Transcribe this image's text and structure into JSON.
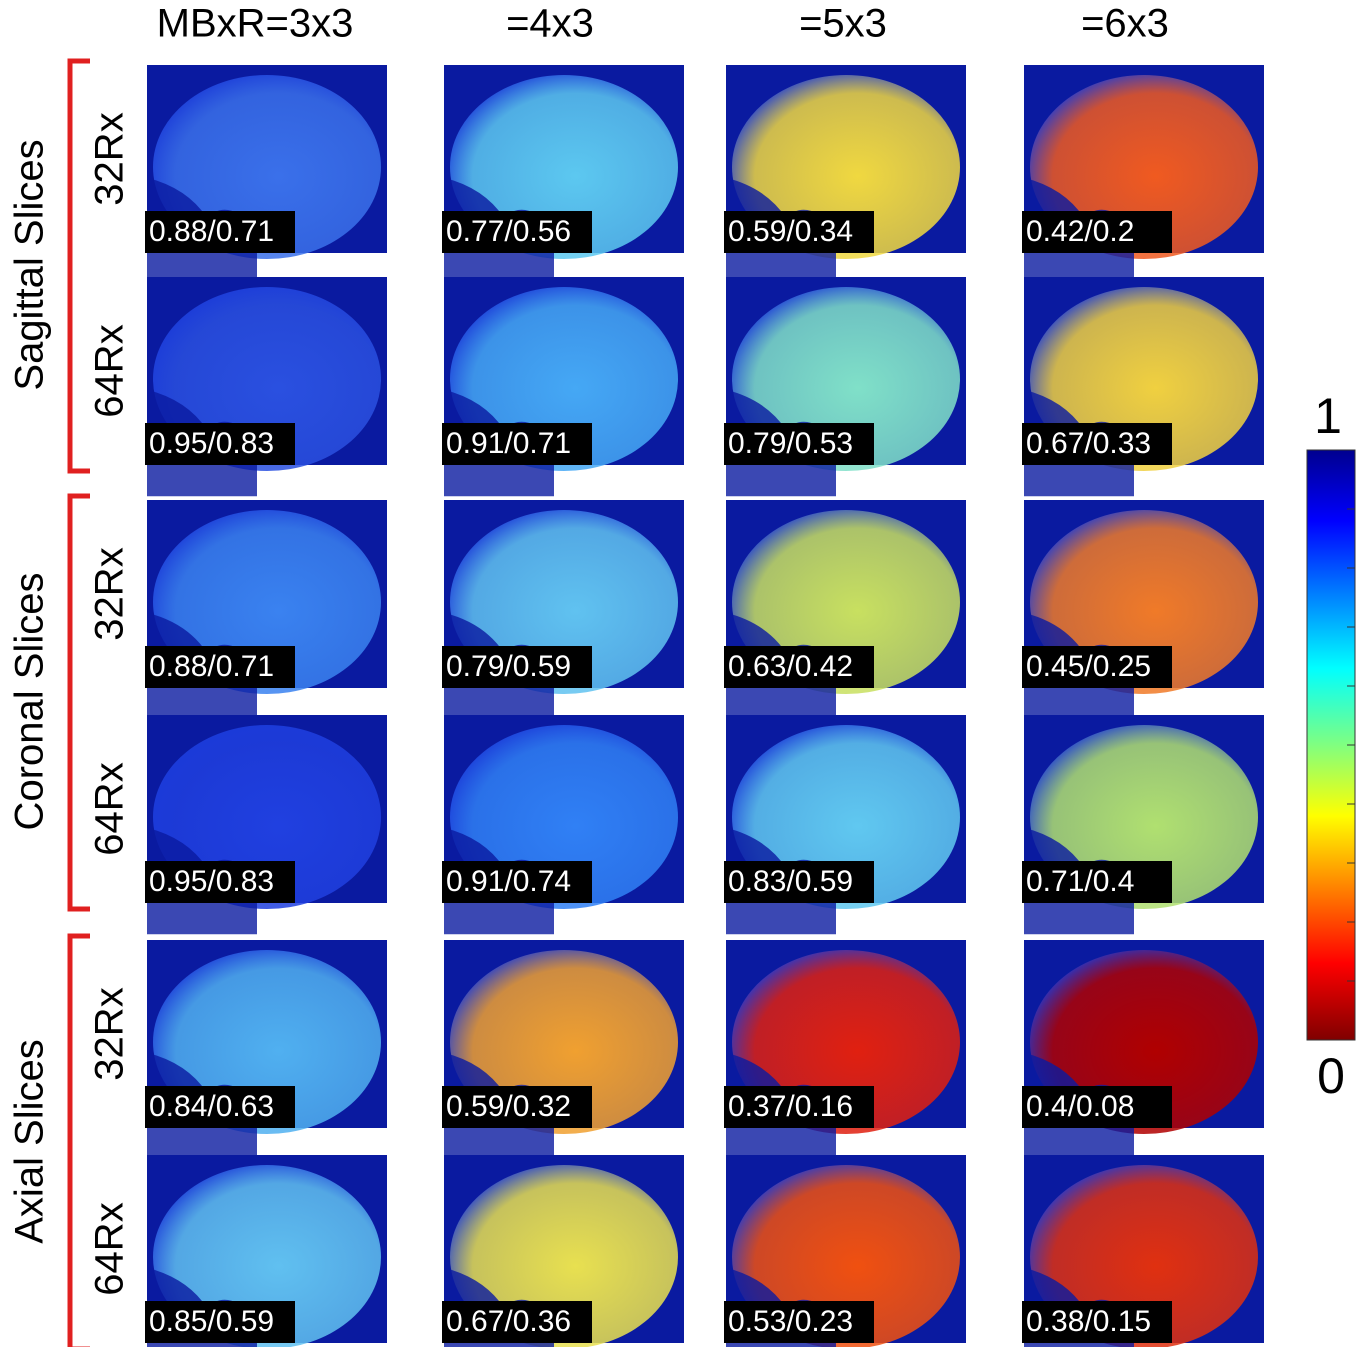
{
  "header": {
    "columns": [
      "MBxR=3x3",
      "=4x3",
      "=5x3",
      "=6x3"
    ]
  },
  "groups": [
    {
      "label": "Sagittal Slices",
      "rows": [
        {
          "label": "32Rx",
          "cells": [
            {
              "label": "0.88/0.71",
              "color": "#3a70ea"
            },
            {
              "label": "0.77/0.56",
              "color": "#5cc8f0"
            },
            {
              "label": "0.59/0.34",
              "color": "#f0d840"
            },
            {
              "label": "0.42/0.2",
              "color": "#f05a20"
            }
          ]
        },
        {
          "label": "64Rx",
          "cells": [
            {
              "label": "0.95/0.83",
              "color": "#2a50e0"
            },
            {
              "label": "0.91/0.71",
              "color": "#45a8f5"
            },
            {
              "label": "0.79/0.53",
              "color": "#80e0c8"
            },
            {
              "label": "0.67/0.33",
              "color": "#f0d040"
            }
          ]
        }
      ]
    },
    {
      "label": "Coronal Slices",
      "rows": [
        {
          "label": "32Rx",
          "cells": [
            {
              "label": "0.88/0.71",
              "color": "#3a82f0"
            },
            {
              "label": "0.79/0.59",
              "color": "#60c2f0"
            },
            {
              "label": "0.63/0.42",
              "color": "#c8e060"
            },
            {
              "label": "0.45/0.25",
              "color": "#f07a28"
            }
          ]
        },
        {
          "label": "64Rx",
          "cells": [
            {
              "label": "0.95/0.83",
              "color": "#2040e0"
            },
            {
              "label": "0.91/0.74",
              "color": "#3080f5"
            },
            {
              "label": "0.83/0.59",
              "color": "#60c8f0"
            },
            {
              "label": "0.71/0.4",
              "color": "#b0e070"
            }
          ]
        }
      ]
    },
    {
      "label": "Axial Slices",
      "rows": [
        {
          "label": "32Rx",
          "cells": [
            {
              "label": "0.84/0.63",
              "color": "#50b0f0"
            },
            {
              "label": "0.59/0.32",
              "color": "#f0a030"
            },
            {
              "label": "0.37/0.16",
              "color": "#e02010"
            },
            {
              "label": "0.4/0.08",
              "color": "#b00000"
            }
          ]
        },
        {
          "label": "64Rx",
          "cells": [
            {
              "label": "0.85/0.59",
              "color": "#60c0f0"
            },
            {
              "label": "0.67/0.36",
              "color": "#e8e050"
            },
            {
              "label": "0.53/0.23",
              "color": "#f05010"
            },
            {
              "label": "0.38/0.15",
              "color": "#e03010"
            }
          ]
        }
      ]
    }
  ],
  "colorbar": {
    "max_label": "1",
    "min_label": "0"
  }
}
